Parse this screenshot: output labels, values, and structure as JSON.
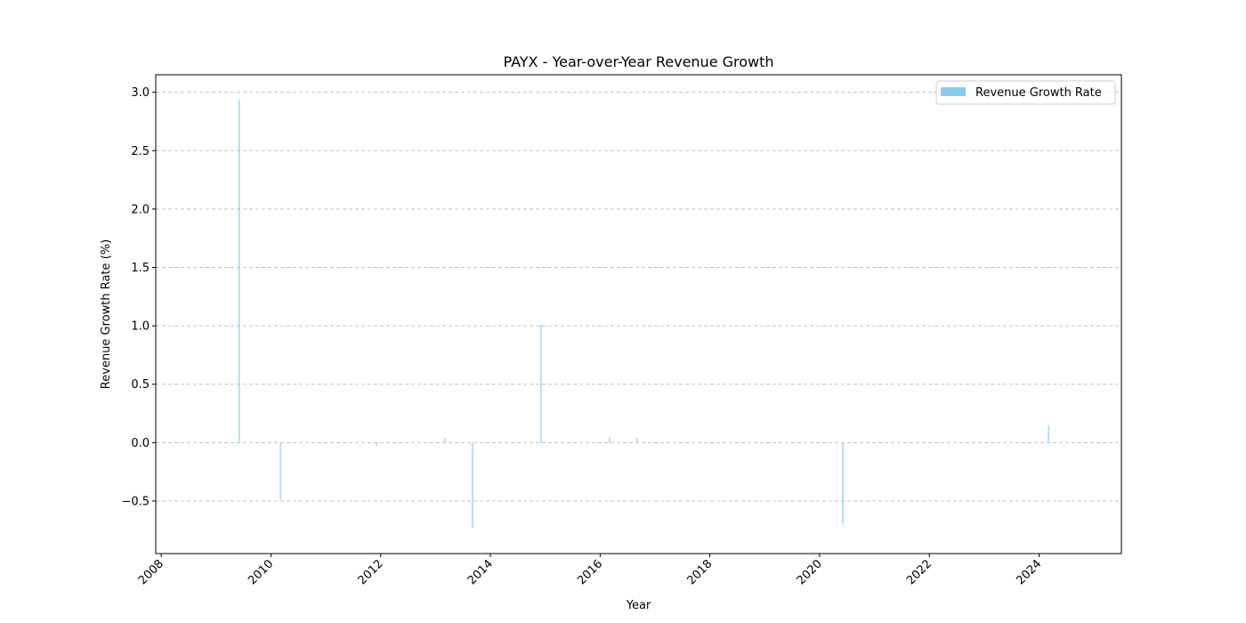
{
  "chart_data": {
    "type": "bar",
    "title": "PAYX - Year-over-Year Revenue Growth",
    "xlabel": "Year",
    "ylabel": "Revenue Growth Rate (%)",
    "xlim": [
      2007.9,
      2025.5
    ],
    "ylim": [
      -0.95,
      3.15
    ],
    "x_ticks": [
      2008,
      2010,
      2012,
      2014,
      2016,
      2018,
      2020,
      2022,
      2024
    ],
    "y_ticks": [
      -0.5,
      0.0,
      0.5,
      1.0,
      1.5,
      2.0,
      2.5,
      3.0
    ],
    "y_tick_labels": [
      "−0.5",
      "0.0",
      "0.5",
      "1.0",
      "1.5",
      "2.0",
      "2.5",
      "3.0"
    ],
    "grid": "y dashed",
    "legend_position": "top-right",
    "series": [
      {
        "name": "Revenue Growth Rate",
        "color": "#87ceeb",
        "x": [
          2009.42,
          2010.17,
          2011.92,
          2013.17,
          2013.67,
          2014.92,
          2016.17,
          2016.67,
          2020.42,
          2024.17
        ],
        "values": [
          2.94,
          -0.49,
          -0.03,
          0.04,
          -0.73,
          1.01,
          0.05,
          0.04,
          -0.7,
          0.15
        ]
      }
    ]
  }
}
